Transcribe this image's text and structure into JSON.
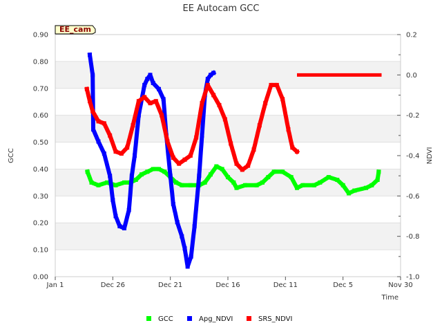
{
  "chart_data": {
    "type": "scatter",
    "title": "EE Autocam GCC",
    "site_label": "EE_cam",
    "xlabel": "Time",
    "ylabel_left": "GCC",
    "ylabel_right": "NDVI",
    "x_tick_labels": [
      "Jan 1",
      "Dec 26",
      "Dec 21",
      "Dec 16",
      "Dec 11",
      "Dec 5",
      "Nov 30"
    ],
    "x_tick_units": [
      0,
      1,
      2,
      3,
      4,
      5,
      6
    ],
    "xlim_units": [
      0,
      6
    ],
    "ylim_left": [
      0,
      0.9
    ],
    "left_ticks": [
      "0.00",
      "0.10",
      "0.20",
      "0.30",
      "0.40",
      "0.50",
      "0.60",
      "0.70",
      "0.80",
      "0.90"
    ],
    "ylim_right": [
      -1.0,
      0.2
    ],
    "right_ticks": [
      "-1.0",
      "-0.8",
      "-0.6",
      "-0.4",
      "-0.2",
      "0.0",
      "0.2"
    ],
    "series": [
      {
        "name": "GCC",
        "color": "#00ff00",
        "axis": "left",
        "points": [
          [
            0.56,
            0.39
          ],
          [
            0.63,
            0.35
          ],
          [
            0.75,
            0.34
          ],
          [
            0.9,
            0.35
          ],
          [
            1.05,
            0.34
          ],
          [
            1.2,
            0.35
          ],
          [
            1.3,
            0.35
          ],
          [
            1.4,
            0.36
          ],
          [
            1.5,
            0.38
          ],
          [
            1.6,
            0.39
          ],
          [
            1.7,
            0.4
          ],
          [
            1.8,
            0.4
          ],
          [
            1.9,
            0.39
          ],
          [
            2.0,
            0.37
          ],
          [
            2.1,
            0.35
          ],
          [
            2.2,
            0.34
          ],
          [
            2.35,
            0.34
          ],
          [
            2.5,
            0.34
          ],
          [
            2.6,
            0.35
          ],
          [
            2.7,
            0.38
          ],
          [
            2.8,
            0.41
          ],
          [
            2.9,
            0.4
          ],
          [
            3.0,
            0.37
          ],
          [
            3.1,
            0.35
          ],
          [
            3.15,
            0.33
          ],
          [
            3.3,
            0.34
          ],
          [
            3.5,
            0.34
          ],
          [
            3.6,
            0.35
          ],
          [
            3.7,
            0.37
          ],
          [
            3.8,
            0.39
          ],
          [
            3.95,
            0.39
          ],
          [
            4.1,
            0.37
          ],
          [
            4.2,
            0.33
          ],
          [
            4.3,
            0.34
          ],
          [
            4.5,
            0.34
          ],
          [
            4.6,
            0.35
          ],
          [
            4.75,
            0.37
          ],
          [
            4.9,
            0.36
          ],
          [
            5.0,
            0.34
          ],
          [
            5.1,
            0.31
          ],
          [
            5.2,
            0.32
          ],
          [
            5.4,
            0.33
          ],
          [
            5.5,
            0.34
          ],
          [
            5.6,
            0.36
          ],
          [
            5.62,
            0.39
          ]
        ]
      },
      {
        "name": "Apg_NDVI",
        "color": "#0000ff",
        "axis": "right",
        "points": [
          [
            0.6,
            0.1
          ],
          [
            0.65,
            0.0
          ],
          [
            0.66,
            -0.27
          ],
          [
            0.75,
            -0.33
          ],
          [
            0.85,
            -0.39
          ],
          [
            0.95,
            -0.5
          ],
          [
            1.0,
            -0.62
          ],
          [
            1.05,
            -0.7
          ],
          [
            1.12,
            -0.75
          ],
          [
            1.2,
            -0.76
          ],
          [
            1.28,
            -0.67
          ],
          [
            1.33,
            -0.5
          ],
          [
            1.38,
            -0.4
          ],
          [
            1.45,
            -0.2
          ],
          [
            1.55,
            -0.05
          ],
          [
            1.6,
            -0.02
          ],
          [
            1.65,
            0.0
          ],
          [
            1.7,
            -0.04
          ],
          [
            1.8,
            -0.07
          ],
          [
            1.88,
            -0.12
          ],
          [
            1.93,
            -0.3
          ],
          [
            2.0,
            -0.5
          ],
          [
            2.05,
            -0.64
          ],
          [
            2.12,
            -0.73
          ],
          [
            2.2,
            -0.8
          ],
          [
            2.25,
            -0.86
          ],
          [
            2.3,
            -0.95
          ],
          [
            2.36,
            -0.9
          ],
          [
            2.42,
            -0.75
          ],
          [
            2.5,
            -0.5
          ],
          [
            2.55,
            -0.3
          ],
          [
            2.6,
            -0.1
          ],
          [
            2.65,
            -0.02
          ],
          [
            2.7,
            0.0
          ],
          [
            2.75,
            0.01
          ]
        ]
      },
      {
        "name": "SRS_NDVI",
        "color": "#ff0000",
        "axis": "right",
        "points": [
          [
            0.55,
            -0.07
          ],
          [
            0.6,
            -0.13
          ],
          [
            0.65,
            -0.18
          ],
          [
            0.75,
            -0.23
          ],
          [
            0.85,
            -0.24
          ],
          [
            0.95,
            -0.3
          ],
          [
            1.05,
            -0.38
          ],
          [
            1.15,
            -0.39
          ],
          [
            1.25,
            -0.36
          ],
          [
            1.35,
            -0.25
          ],
          [
            1.45,
            -0.13
          ],
          [
            1.55,
            -0.11
          ],
          [
            1.65,
            -0.14
          ],
          [
            1.75,
            -0.13
          ],
          [
            1.85,
            -0.2
          ],
          [
            1.95,
            -0.33
          ],
          [
            2.05,
            -0.41
          ],
          [
            2.15,
            -0.44
          ],
          [
            2.25,
            -0.42
          ],
          [
            2.35,
            -0.4
          ],
          [
            2.45,
            -0.31
          ],
          [
            2.55,
            -0.14
          ],
          [
            2.65,
            -0.05
          ],
          [
            2.75,
            -0.1
          ],
          [
            2.85,
            -0.15
          ],
          [
            2.95,
            -0.22
          ],
          [
            3.05,
            -0.34
          ],
          [
            3.15,
            -0.44
          ],
          [
            3.25,
            -0.47
          ],
          [
            3.35,
            -0.45
          ],
          [
            3.45,
            -0.37
          ],
          [
            3.55,
            -0.25
          ],
          [
            3.65,
            -0.14
          ],
          [
            3.75,
            -0.05
          ],
          [
            3.85,
            -0.05
          ],
          [
            3.95,
            -0.12
          ],
          [
            4.05,
            -0.27
          ],
          [
            4.12,
            -0.36
          ],
          [
            4.2,
            -0.38
          ]
        ]
      },
      {
        "name": "SRS_NDVI_line",
        "color": "#ff0000",
        "axis": "right",
        "segment": [
          [
            4.2,
            0.0
          ],
          [
            5.67,
            0.0
          ]
        ]
      }
    ],
    "legend": [
      "GCC",
      "Apg_NDVI",
      "SRS_NDVI"
    ],
    "legend_position": "bottom"
  }
}
